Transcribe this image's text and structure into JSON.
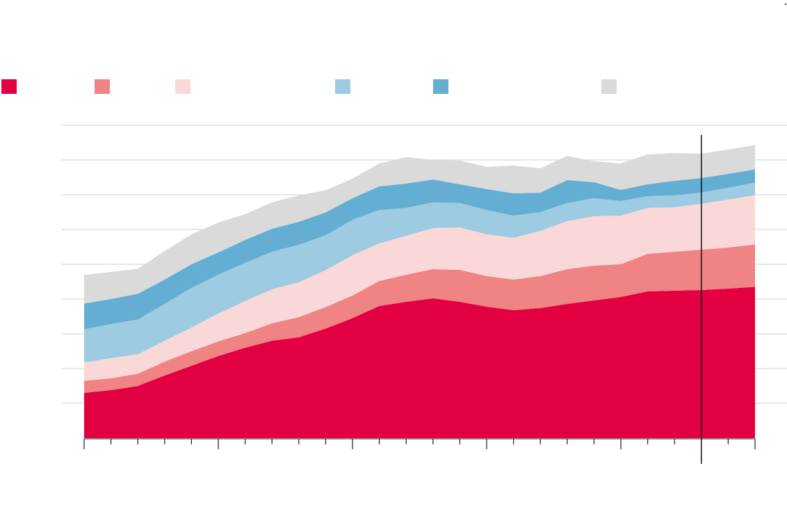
{
  "chart_data": {
    "type": "area",
    "stacked": true,
    "title": "",
    "xlabel": "",
    "ylabel": "",
    "x": [
      0,
      1,
      2,
      3,
      4,
      5,
      6,
      7,
      8,
      9,
      10,
      11,
      12,
      13,
      14,
      15,
      16,
      17,
      18,
      19,
      20,
      21,
      22,
      23,
      24,
      25
    ],
    "ylim": [
      0,
      9
    ],
    "grid": true,
    "legend_position": "top",
    "series": [
      {
        "name": "",
        "color": "#e30040",
        "values": [
          1.3,
          1.38,
          1.5,
          1.8,
          2.08,
          2.36,
          2.6,
          2.8,
          2.9,
          3.15,
          3.45,
          3.8,
          3.92,
          4.02,
          3.92,
          3.78,
          3.68,
          3.74,
          3.86,
          3.96,
          4.06,
          4.22,
          4.24,
          4.26,
          4.3,
          4.35
        ]
      },
      {
        "name": "",
        "color": "#f08383",
        "values": [
          0.35,
          0.34,
          0.35,
          0.4,
          0.42,
          0.42,
          0.42,
          0.5,
          0.58,
          0.62,
          0.65,
          0.72,
          0.78,
          0.84,
          0.92,
          0.88,
          0.88,
          0.92,
          1.0,
          1.0,
          0.94,
          1.08,
          1.12,
          1.16,
          1.18,
          1.22
        ]
      },
      {
        "name": "",
        "color": "#fbd8d8",
        "values": [
          0.52,
          0.58,
          0.56,
          0.6,
          0.68,
          0.8,
          0.92,
          0.98,
          1.0,
          1.06,
          1.16,
          1.08,
          1.12,
          1.18,
          1.22,
          1.2,
          1.2,
          1.3,
          1.38,
          1.42,
          1.4,
          1.32,
          1.28,
          1.32,
          1.38,
          1.42
        ]
      },
      {
        "name": "",
        "color": "#9ccbe2",
        "values": [
          0.96,
          0.98,
          1.0,
          1.06,
          1.14,
          1.12,
          1.1,
          1.08,
          1.08,
          1.0,
          1.02,
          0.96,
          0.8,
          0.74,
          0.7,
          0.7,
          0.64,
          0.54,
          0.52,
          0.52,
          0.42,
          0.34,
          0.34,
          0.32,
          0.34,
          0.36
        ]
      },
      {
        "name": "",
        "color": "#63aed2",
        "values": [
          0.74,
          0.72,
          0.74,
          0.7,
          0.68,
          0.64,
          0.66,
          0.66,
          0.66,
          0.66,
          0.62,
          0.68,
          0.7,
          0.66,
          0.54,
          0.6,
          0.64,
          0.56,
          0.66,
          0.46,
          0.32,
          0.34,
          0.42,
          0.42,
          0.4,
          0.38
        ]
      },
      {
        "name": "",
        "color": "#dadada",
        "values": [
          0.82,
          0.78,
          0.72,
          0.82,
          0.86,
          0.86,
          0.74,
          0.76,
          0.76,
          0.64,
          0.56,
          0.66,
          0.76,
          0.56,
          0.68,
          0.64,
          0.8,
          0.7,
          0.7,
          0.6,
          0.76,
          0.86,
          0.8,
          0.7,
          0.7,
          0.7
        ]
      }
    ],
    "vertical_marker_at": 23
  }
}
